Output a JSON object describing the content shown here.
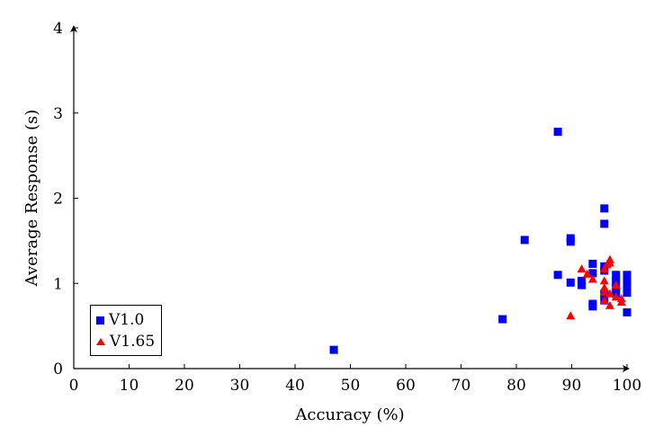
{
  "chart_data": {
    "type": "scatter",
    "title": "",
    "xlabel": "Accuracy (%)",
    "ylabel": "Average Response (s)",
    "xlim": [
      0,
      100
    ],
    "ylim": [
      0,
      4
    ],
    "xticks": [
      0,
      10,
      20,
      30,
      40,
      50,
      60,
      70,
      80,
      90,
      100
    ],
    "yticks": [
      0,
      1,
      2,
      3,
      4
    ],
    "grid": false,
    "legend_position": "lower left",
    "series": [
      {
        "name": "V1.0",
        "marker": "square",
        "color": "#0000ff",
        "points": [
          [
            47.0,
            0.22
          ],
          [
            77.5,
            0.58
          ],
          [
            81.5,
            1.51
          ],
          [
            87.5,
            2.78
          ],
          [
            87.5,
            1.1
          ],
          [
            89.8,
            1.53
          ],
          [
            89.8,
            1.49
          ],
          [
            89.8,
            1.01
          ],
          [
            91.8,
            1.03
          ],
          [
            91.8,
            0.98
          ],
          [
            93.8,
            1.23
          ],
          [
            93.8,
            1.12
          ],
          [
            93.8,
            0.76
          ],
          [
            93.8,
            0.73
          ],
          [
            95.9,
            1.88
          ],
          [
            95.9,
            1.7
          ],
          [
            95.9,
            1.2
          ],
          [
            95.9,
            1.15
          ],
          [
            95.9,
            0.88
          ],
          [
            95.9,
            0.8
          ],
          [
            98.0,
            1.1
          ],
          [
            98.0,
            1.02
          ],
          [
            98.0,
            0.95
          ],
          [
            98.0,
            0.88
          ],
          [
            100.0,
            1.1
          ],
          [
            100.0,
            1.03
          ],
          [
            100.0,
            0.96
          ],
          [
            100.0,
            0.89
          ],
          [
            100.0,
            0.66
          ]
        ]
      },
      {
        "name": "V1.65",
        "marker": "triangle",
        "color": "#ff0000",
        "points": [
          [
            89.8,
            0.62
          ],
          [
            91.8,
            1.17
          ],
          [
            92.8,
            1.11
          ],
          [
            93.8,
            1.05
          ],
          [
            95.9,
            1.17
          ],
          [
            95.9,
            1.03
          ],
          [
            95.9,
            0.95
          ],
          [
            95.9,
            0.9
          ],
          [
            95.9,
            0.8
          ],
          [
            96.4,
            1.22
          ],
          [
            96.9,
            1.28
          ],
          [
            96.9,
            1.24
          ],
          [
            96.9,
            0.88
          ],
          [
            96.9,
            0.74
          ],
          [
            98.0,
            0.98
          ],
          [
            98.0,
            0.84
          ],
          [
            99.0,
            0.82
          ],
          [
            99.0,
            0.78
          ]
        ]
      }
    ]
  },
  "legend": {
    "items": [
      {
        "label": "V1.0"
      },
      {
        "label": "V1.65"
      }
    ]
  }
}
